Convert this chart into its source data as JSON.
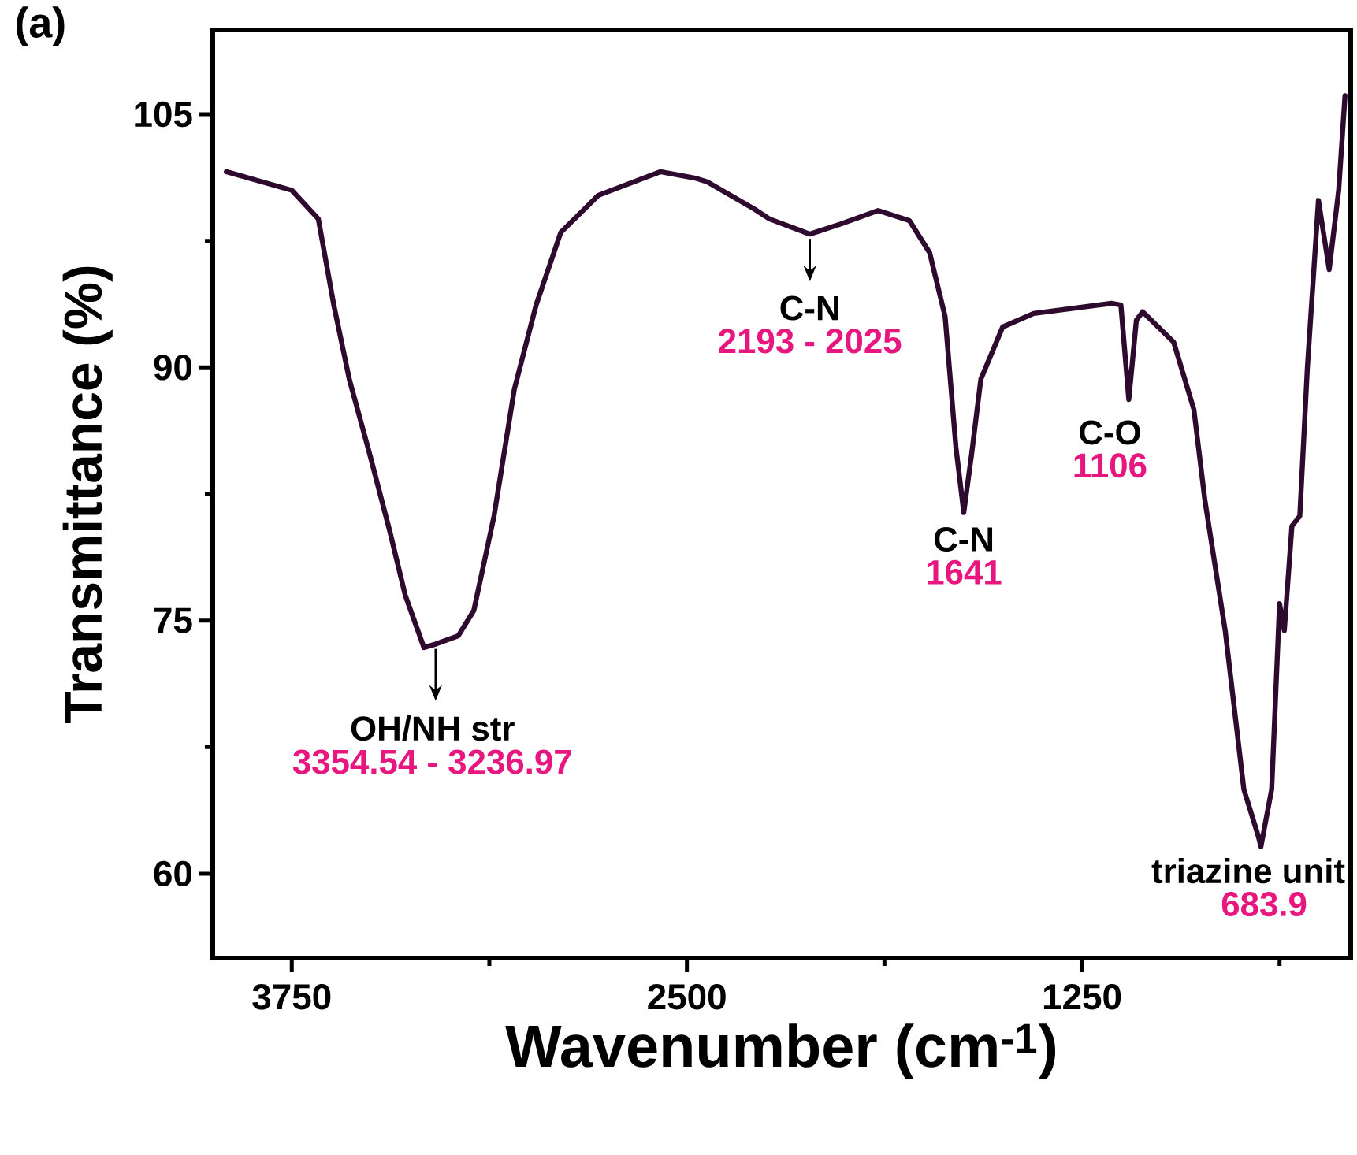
{
  "chart_data": {
    "type": "line",
    "xlabel": "Wavenumber (cm$^{-1}$)",
    "ylabel": "Transmittance (%)",
    "xlim": [
      4000,
      400
    ],
    "ylim": [
      55,
      110
    ],
    "xticks": [
      3750,
      {
        "value": 3125,
        "label": null
      },
      2500,
      {
        "value": 1875,
        "label": null
      },
      1250,
      {
        "value": 625,
        "label": null
      }
    ],
    "yticks": [
      60,
      {
        "value": 67.5,
        "label": null
      },
      75,
      {
        "value": 82.5,
        "label": null
      },
      90,
      {
        "value": 97.5,
        "label": null
      },
      105
    ],
    "grid": false,
    "marker": "none",
    "line_style": "solid",
    "series": [
      {
        "color": "#2d0a2e",
        "x": [
          3957,
          3750,
          3666,
          3617,
          3568,
          3504,
          3440,
          3391,
          3332,
          3295,
          3223,
          3174,
          3110,
          3046,
          2977,
          2899,
          2780,
          2584,
          2470,
          2436,
          2288,
          2239,
          2111,
          2013,
          1895,
          1796,
          1732,
          1683,
          1649,
          1624,
          1599,
          1570,
          1501,
          1403,
          1157,
          1127,
          1102,
          1078,
          1058,
          960,
          896,
          861,
          797,
          738,
          692,
          684,
          676,
          650,
          625,
          610,
          586,
          561,
          537,
          502,
          468,
          438,
          418
        ],
        "values": [
          101.6,
          100.5,
          98.8,
          93.7,
          89.3,
          84.9,
          80.3,
          76.5,
          73.4,
          73.6,
          74.1,
          75.6,
          81.2,
          88.7,
          93.7,
          98.0,
          100.2,
          101.6,
          101.2,
          101.0,
          99.4,
          98.8,
          97.9,
          98.5,
          99.3,
          98.7,
          96.8,
          93.0,
          85.3,
          81.4,
          84.9,
          89.3,
          92.4,
          93.2,
          93.8,
          93.7,
          88.1,
          92.8,
          93.3,
          91.5,
          87.5,
          82.1,
          74.4,
          65.0,
          62.2,
          61.6,
          62.4,
          65.0,
          76.0,
          74.4,
          80.6,
          81.2,
          90.0,
          99.9,
          95.8,
          100.5,
          106.1
        ]
      }
    ],
    "annotations": [
      "(a)",
      {
        "text": "OH/NH str",
        "x": 3295,
        "y": 73.6
      },
      "3354.54 - 3236.97",
      {
        "text": "C-N",
        "x": 2111,
        "y": 97.9
      },
      "2193 - 2025",
      {
        "text": "C-N",
        "x": 1624,
        "y": 81.4
      },
      "1641",
      {
        "text": "C-O",
        "x": 1102,
        "y": 88.1
      },
      "1106",
      {
        "text": "triazine unit",
        "x": 684,
        "y": 61.6
      },
      "683.9"
    ]
  }
}
